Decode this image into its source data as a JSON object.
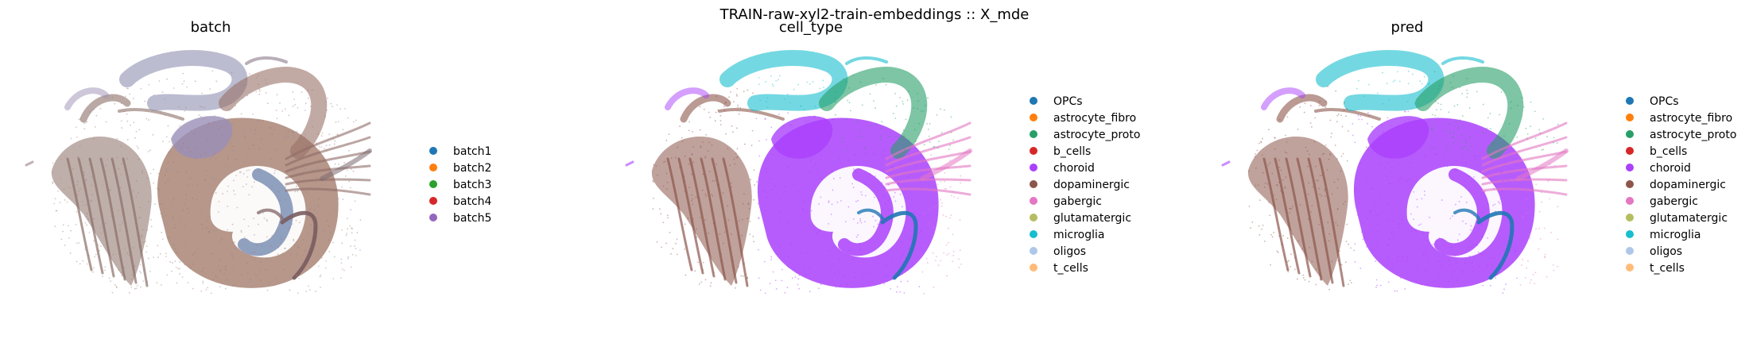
{
  "figure": {
    "suptitle": "TRAIN-raw-xyl2-train-embeddings :: X_mde"
  },
  "chart_data": [
    {
      "type": "scatter",
      "title": "batch",
      "xlabel": "",
      "ylabel": "",
      "grid": false,
      "legend": "right",
      "legend_entries": [
        {
          "name": "batch1",
          "color": "#1f77b4"
        },
        {
          "name": "batch2",
          "color": "#ff7f0e"
        },
        {
          "name": "batch3",
          "color": "#2ca02c"
        },
        {
          "name": "batch4",
          "color": "#d62728"
        },
        {
          "name": "batch5",
          "color": "#9467bd"
        }
      ]
    },
    {
      "type": "scatter",
      "title": "cell_type",
      "xlabel": "",
      "ylabel": "",
      "grid": false,
      "legend": "right",
      "legend_entries": [
        {
          "name": "OPCs",
          "color": "#1f77b4"
        },
        {
          "name": "astrocyte_fibro",
          "color": "#ff7f0e"
        },
        {
          "name": "astrocyte_proto",
          "color": "#279e68"
        },
        {
          "name": "b_cells",
          "color": "#d62728"
        },
        {
          "name": "choroid",
          "color": "#aa40fc"
        },
        {
          "name": "dopaminergic",
          "color": "#8c564b"
        },
        {
          "name": "gabergic",
          "color": "#e377c2"
        },
        {
          "name": "glutamatergic",
          "color": "#b5bd61"
        },
        {
          "name": "microglia",
          "color": "#17becf"
        },
        {
          "name": "oligos",
          "color": "#aec7e8"
        },
        {
          "name": "t_cells",
          "color": "#ffbb78"
        }
      ]
    },
    {
      "type": "scatter",
      "title": "pred",
      "xlabel": "",
      "ylabel": "",
      "grid": false,
      "legend": "right",
      "legend_entries": [
        {
          "name": "OPCs",
          "color": "#1f77b4"
        },
        {
          "name": "astrocyte_fibro",
          "color": "#ff7f0e"
        },
        {
          "name": "astrocyte_proto",
          "color": "#279e68"
        },
        {
          "name": "b_cells",
          "color": "#d62728"
        },
        {
          "name": "choroid",
          "color": "#aa40fc"
        },
        {
          "name": "dopaminergic",
          "color": "#8c564b"
        },
        {
          "name": "gabergic",
          "color": "#e377c2"
        },
        {
          "name": "glutamatergic",
          "color": "#b5bd61"
        },
        {
          "name": "microglia",
          "color": "#17becf"
        },
        {
          "name": "oligos",
          "color": "#aec7e8"
        },
        {
          "name": "t_cells",
          "color": "#ffbb78"
        }
      ]
    }
  ]
}
